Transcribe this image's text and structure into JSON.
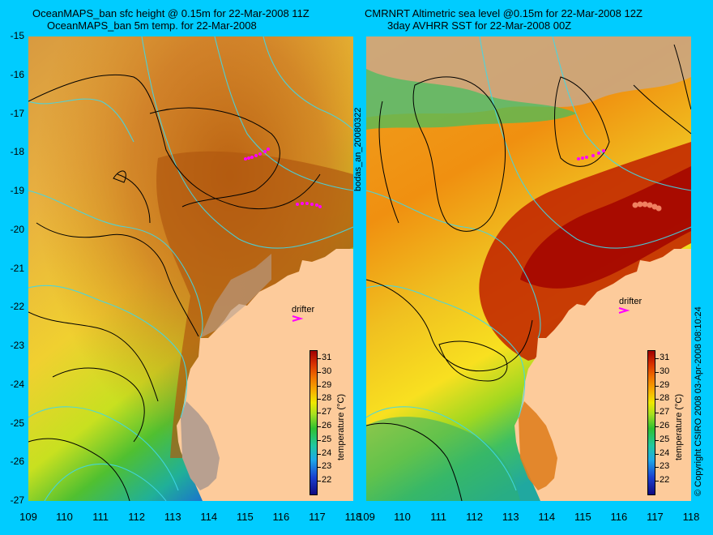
{
  "left": {
    "title_line1": "OceanMAPS_ban sfc height @ 0.15m for 22-Mar-2008 11Z",
    "title_line2": "OceanMAPS_ban 5m temp. for 22-Mar-2008"
  },
  "right": {
    "title_line1": "CMRNRT Altimetric sea level  @0.15m  for 22-Mar-2008 12Z",
    "title_line2": "3day AVHRR SST for 22-Mar-2008 00Z"
  },
  "axes": {
    "y_ticks": [
      "-15",
      "-16",
      "-17",
      "-18",
      "-19",
      "-20",
      "-21",
      "-22",
      "-23",
      "-24",
      "-25",
      "-26",
      "-27"
    ],
    "x_ticks": [
      "109",
      "110",
      "111",
      "112",
      "113",
      "114",
      "115",
      "116",
      "117",
      "118"
    ]
  },
  "colorbar": {
    "title": "temperature (°C)",
    "ticks": [
      "31",
      "30",
      "29",
      "28",
      "27",
      "26",
      "25",
      "24",
      "23",
      "22"
    ]
  },
  "labels": {
    "drifter": "drifter",
    "side_id": "bodas_an_20080322",
    "copyright": "© Copyright CSIRO 2008   03-Apr-2008 08:10:24"
  },
  "colors": {
    "background": "#00ccff",
    "land": "#fdcb9b",
    "drifter": "#ff00ff",
    "contour": "#000000",
    "bathymetry": "#40d8e8"
  }
}
